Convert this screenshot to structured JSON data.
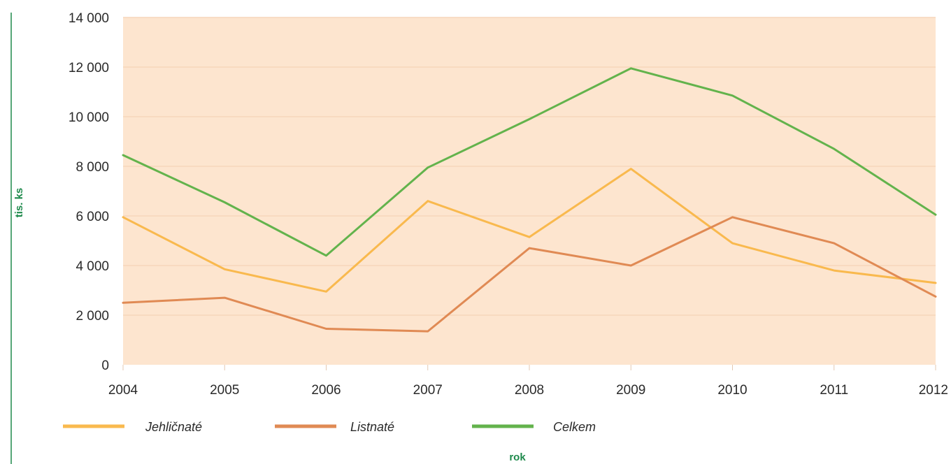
{
  "chart_data": {
    "type": "line",
    "xlabel": "rok",
    "ylabel": "tis. ks",
    "categories": [
      "2004",
      "2005",
      "2006",
      "2007",
      "2008",
      "2009",
      "2010",
      "2011",
      "2012"
    ],
    "ylim": [
      0,
      14000
    ],
    "yticks": [
      0,
      2000,
      4000,
      6000,
      8000,
      10000,
      12000,
      14000
    ],
    "ytick_labels": [
      "0",
      "2 000",
      "4 000",
      "6 000",
      "8 000",
      "10 000",
      "12 000",
      "14 000"
    ],
    "grid": true,
    "legend_position": "bottom",
    "series": [
      {
        "name": "Jehličnaté",
        "color": "#f9b94e",
        "values": [
          5950,
          3850,
          2950,
          6600,
          5150,
          7900,
          4900,
          3800,
          3300
        ]
      },
      {
        "name": "Listnaté",
        "color": "#e08a54",
        "values": [
          2500,
          2700,
          1450,
          1350,
          4700,
          4000,
          5950,
          4900,
          2750
        ]
      },
      {
        "name": "Celkem",
        "color": "#63b34c",
        "values": [
          8450,
          6550,
          4400,
          7950,
          9900,
          11950,
          10850,
          8700,
          6050
        ]
      }
    ],
    "colors": {
      "plot_background": "#fde5cf",
      "axis_title": "#1f8a4c",
      "frame_line": "#1f8a4c"
    }
  }
}
